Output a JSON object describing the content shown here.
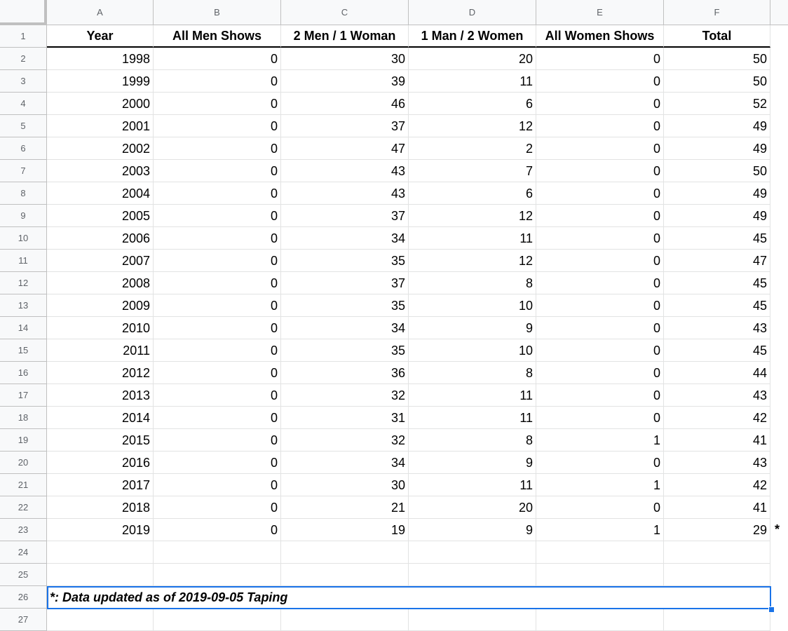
{
  "column_headers": [
    "A",
    "B",
    "C",
    "D",
    "E",
    "F"
  ],
  "row_numbers": [
    "1",
    "2",
    "3",
    "4",
    "5",
    "6",
    "7",
    "8",
    "9",
    "10",
    "11",
    "12",
    "13",
    "14",
    "15",
    "16",
    "17",
    "18",
    "19",
    "20",
    "21",
    "22",
    "23",
    "24",
    "25",
    "26",
    "27"
  ],
  "table": {
    "headers": [
      "Year",
      "All Men Shows",
      "2 Men / 1 Woman",
      "1 Man / 2 Women",
      "All Women Shows",
      "Total"
    ],
    "rows": [
      [
        "1998",
        "0",
        "30",
        "20",
        "0",
        "50"
      ],
      [
        "1999",
        "0",
        "39",
        "11",
        "0",
        "50"
      ],
      [
        "2000",
        "0",
        "46",
        "6",
        "0",
        "52"
      ],
      [
        "2001",
        "0",
        "37",
        "12",
        "0",
        "49"
      ],
      [
        "2002",
        "0",
        "47",
        "2",
        "0",
        "49"
      ],
      [
        "2003",
        "0",
        "43",
        "7",
        "0",
        "50"
      ],
      [
        "2004",
        "0",
        "43",
        "6",
        "0",
        "49"
      ],
      [
        "2005",
        "0",
        "37",
        "12",
        "0",
        "49"
      ],
      [
        "2006",
        "0",
        "34",
        "11",
        "0",
        "45"
      ],
      [
        "2007",
        "0",
        "35",
        "12",
        "0",
        "47"
      ],
      [
        "2008",
        "0",
        "37",
        "8",
        "0",
        "45"
      ],
      [
        "2009",
        "0",
        "35",
        "10",
        "0",
        "45"
      ],
      [
        "2010",
        "0",
        "34",
        "9",
        "0",
        "43"
      ],
      [
        "2011",
        "0",
        "35",
        "10",
        "0",
        "45"
      ],
      [
        "2012",
        "0",
        "36",
        "8",
        "0",
        "44"
      ],
      [
        "2013",
        "0",
        "32",
        "11",
        "0",
        "43"
      ],
      [
        "2014",
        "0",
        "31",
        "11",
        "0",
        "42"
      ],
      [
        "2015",
        "0",
        "32",
        "8",
        "1",
        "41"
      ],
      [
        "2016",
        "0",
        "34",
        "9",
        "0",
        "43"
      ],
      [
        "2017",
        "0",
        "30",
        "11",
        "1",
        "42"
      ],
      [
        "2018",
        "0",
        "21",
        "20",
        "0",
        "41"
      ],
      [
        "2019",
        "0",
        "19",
        "9",
        "1",
        "29"
      ]
    ]
  },
  "asterisk_marker": "*",
  "footnote": "*: Data updated as of 2019-09-05 Taping",
  "colors": {
    "selection": "#1a73e8",
    "header_bg": "#f8f9fa",
    "grid_line": "#e2e3e3"
  }
}
